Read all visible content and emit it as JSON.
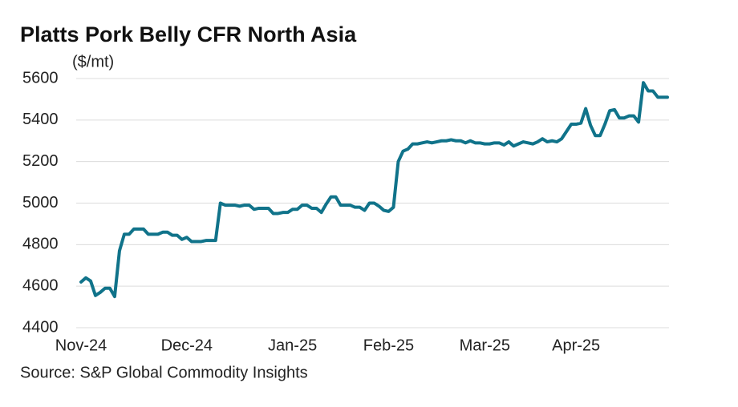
{
  "chart_data": {
    "type": "line",
    "title": "Platts Pork Belly CFR North Asia",
    "y_label": "($/mt)",
    "source": "Source: S&P Global Commodity Insights",
    "categories": [
      "Nov-24",
      null,
      null,
      null,
      null,
      null,
      null,
      null,
      null,
      null,
      null,
      null,
      null,
      null,
      null,
      null,
      null,
      null,
      null,
      null,
      null,
      null,
      "Dec-24",
      null,
      null,
      null,
      null,
      null,
      null,
      null,
      null,
      null,
      null,
      null,
      null,
      null,
      null,
      null,
      null,
      null,
      null,
      null,
      null,
      null,
      "Jan-25",
      null,
      null,
      null,
      null,
      null,
      null,
      null,
      null,
      null,
      null,
      null,
      null,
      null,
      null,
      null,
      null,
      null,
      null,
      null,
      "Feb-25",
      null,
      null,
      null,
      null,
      null,
      null,
      null,
      null,
      null,
      null,
      null,
      null,
      null,
      null,
      null,
      null,
      null,
      null,
      null,
      "Mar-25",
      null,
      null,
      null,
      null,
      null,
      null,
      null,
      null,
      null,
      null,
      null,
      null,
      null,
      null,
      null,
      null,
      null,
      null,
      "Apr-25",
      null,
      null,
      null,
      null,
      null,
      null,
      null,
      null,
      null,
      null,
      null,
      null,
      null,
      null,
      null,
      null,
      null,
      null,
      null
    ],
    "values": [
      4620,
      4640,
      4625,
      4555,
      4570,
      4590,
      4590,
      4550,
      4770,
      4850,
      4850,
      4875,
      4875,
      4875,
      4850,
      4850,
      4850,
      4860,
      4860,
      4845,
      4845,
      4825,
      4835,
      4815,
      4815,
      4815,
      4820,
      4820,
      4820,
      5000,
      4990,
      4990,
      4990,
      4985,
      4990,
      4990,
      4970,
      4975,
      4975,
      4975,
      4950,
      4950,
      4955,
      4955,
      4970,
      4970,
      4990,
      4990,
      4975,
      4975,
      4955,
      4995,
      5030,
      5030,
      4990,
      4990,
      4990,
      4980,
      4980,
      4965,
      5000,
      5000,
      4985,
      4965,
      4960,
      4980,
      5200,
      5250,
      5260,
      5285,
      5285,
      5290,
      5295,
      5290,
      5295,
      5300,
      5300,
      5305,
      5300,
      5300,
      5290,
      5300,
      5290,
      5290,
      5285,
      5285,
      5290,
      5290,
      5280,
      5295,
      5275,
      5285,
      5295,
      5290,
      5285,
      5295,
      5310,
      5295,
      5300,
      5295,
      5310,
      5345,
      5380,
      5380,
      5385,
      5455,
      5375,
      5325,
      5325,
      5380,
      5445,
      5450,
      5410,
      5410,
      5420,
      5420,
      5390,
      5580,
      5540,
      5540,
      5510,
      5510,
      5510
    ],
    "color": "#10738a",
    "ylim": [
      4400,
      5600
    ],
    "yticks": [
      4400,
      4600,
      4800,
      5000,
      5200,
      5400,
      5600
    ],
    "grid": true
  }
}
